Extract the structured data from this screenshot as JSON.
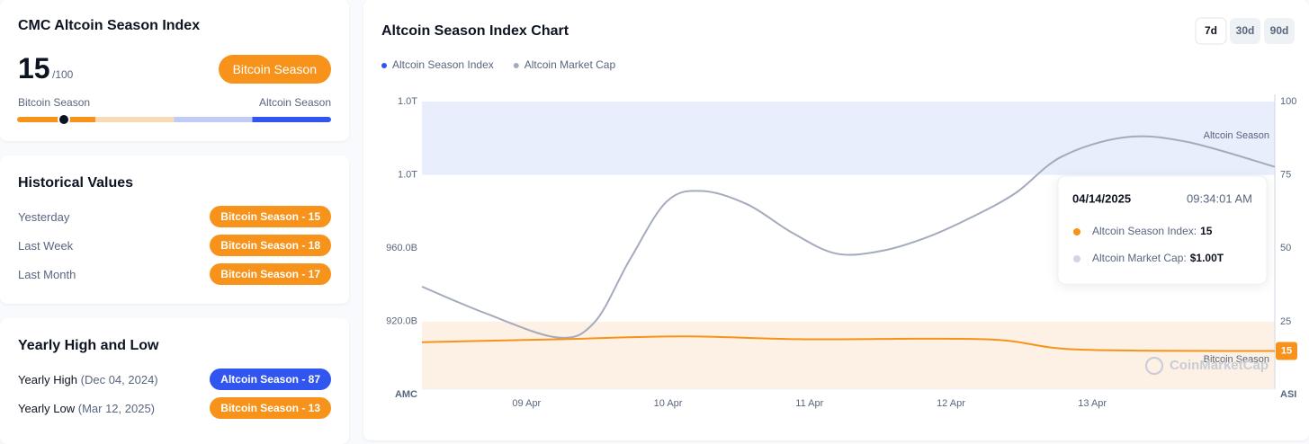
{
  "index_card": {
    "title": "CMC Altcoin Season Index",
    "value": 15,
    "max": {
      "value": 100,
      "label": "/100"
    },
    "status": "Bitcoin Season",
    "scale_left": "Bitcoin Season",
    "scale_right": "Altcoin Season"
  },
  "historical": {
    "title": "Historical Values",
    "rows": [
      {
        "label": "Yesterday",
        "badge": "Bitcoin Season - 15"
      },
      {
        "label": "Last Week",
        "badge": "Bitcoin Season - 18"
      },
      {
        "label": "Last Month",
        "badge": "Bitcoin Season - 17"
      }
    ]
  },
  "yearly": {
    "title": "Yearly High and Low",
    "rows": [
      {
        "label": "Yearly High",
        "date": "(Dec 04, 2024)",
        "badge": "Altcoin Season - 87",
        "color": "#3156f0"
      },
      {
        "label": "Yearly Low",
        "date": "(Mar 12, 2025)",
        "badge": "Bitcoin Season - 13",
        "color": "#f7931a"
      }
    ]
  },
  "chart_data": {
    "type": "line",
    "title": "Altcoin Season Index Chart",
    "tabs": [
      "7d",
      "30d",
      "90d"
    ],
    "active_tab": "7d",
    "y_label": "AMC",
    "y2_label": "ASI",
    "watermark": "CoinMarketCap",
    "xlim": [
      8.26,
      14.29
    ],
    "xticks": [
      {
        "value": 9,
        "label": "09 Apr"
      },
      {
        "value": 10,
        "label": "10 Apr"
      },
      {
        "value": 11,
        "label": "11 Apr"
      },
      {
        "value": 12,
        "label": "12 Apr"
      },
      {
        "value": 13,
        "label": "13 Apr"
      }
    ],
    "ylim": [
      883,
      1040
    ],
    "yticks": [
      {
        "value": 920,
        "label": "920.0B"
      },
      {
        "value": 960,
        "label": "960.0B"
      },
      {
        "value": 1000,
        "label": "1.0T"
      },
      {
        "value": 1040,
        "label": "1.0T"
      }
    ],
    "y2lim": [
      2,
      100
    ],
    "y2ticks": [
      25,
      50,
      75,
      100
    ],
    "bands": [
      {
        "name": "Altcoin Season",
        "range": [
          75,
          100
        ],
        "color": "#e9eefd"
      },
      {
        "name": "Bitcoin Season",
        "range": [
          0,
          25
        ],
        "color": "#fdf1e6"
      }
    ],
    "series": [
      {
        "name": "Altcoin Season Index",
        "color": "#f7931a",
        "legend_color": "#3156f0",
        "axis": "y2",
        "x": [
          8.26,
          9.22,
          10.1,
          10.98,
          12.25,
          12.9,
          14.29
        ],
        "values": [
          18,
          19,
          20,
          19,
          19,
          15.5,
          15
        ]
      },
      {
        "name": "Altcoin Market Cap",
        "color": "#a3abbd",
        "legend_color": "#a3abbd",
        "x": [
          8.26,
          8.71,
          9.22,
          9.48,
          9.73,
          9.99,
          10.24,
          10.56,
          10.88,
          11.19,
          11.51,
          11.83,
          12.15,
          12.46,
          12.78,
          13.23,
          13.67,
          14.29
        ],
        "values": [
          939,
          924.4,
          911.2,
          919.5,
          953.7,
          985.4,
          991.2,
          983.9,
          968.3,
          957,
          958.5,
          965.9,
          977,
          990.2,
          1009.8,
          1020.5,
          1018,
          1004.4
        ]
      }
    ],
    "tooltip": {
      "date": "04/14/2025",
      "time": "09:34:01 AM",
      "rows": [
        {
          "label": "Altcoin Season Index:",
          "value": "15",
          "color": "#f7931a"
        },
        {
          "label": "Altcoin Market Cap:",
          "value": "$1.00T",
          "color": "#cfd5e2"
        }
      ]
    }
  }
}
